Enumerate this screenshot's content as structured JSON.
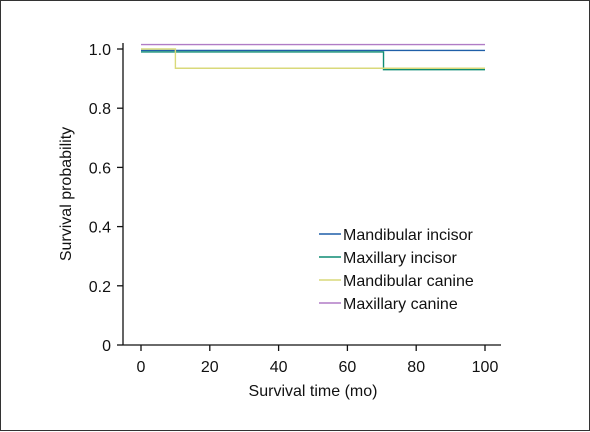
{
  "chart_data": {
    "type": "line",
    "title": "",
    "xlabel": "Survival time (mo)",
    "ylabel": "Survival probability",
    "xlim": [
      0,
      100
    ],
    "ylim": [
      0,
      1.0
    ],
    "x_ticks": [
      0,
      20,
      40,
      60,
      80,
      100
    ],
    "y_ticks": [
      0,
      0.2,
      0.4,
      0.6,
      0.8,
      1.0
    ],
    "x_tick_labels": [
      "0",
      "20",
      "40",
      "60",
      "80",
      "100"
    ],
    "y_tick_labels": [
      "0",
      "0.2",
      "0.4",
      "0.6",
      "0.8",
      "1.0"
    ],
    "grid": false,
    "legend_position": "lower-right",
    "step": true,
    "series": [
      {
        "name": "Mandibular incisor",
        "color": "#1f5fa8",
        "x": [
          0,
          100
        ],
        "y": [
          0.995,
          0.995
        ]
      },
      {
        "name": "Maxillary incisor",
        "color": "#0e8c74",
        "x": [
          0,
          70.5,
          100
        ],
        "y": [
          0.99,
          0.93,
          0.93
        ]
      },
      {
        "name": "Mandibular canine",
        "color": "#d9d97a",
        "x": [
          0,
          10,
          100
        ],
        "y": [
          1.0,
          0.935,
          0.935
        ]
      },
      {
        "name": "Maxillary canine",
        "color": "#b07cc6",
        "x": [
          0,
          100
        ],
        "y": [
          1.015,
          1.015
        ]
      }
    ]
  }
}
